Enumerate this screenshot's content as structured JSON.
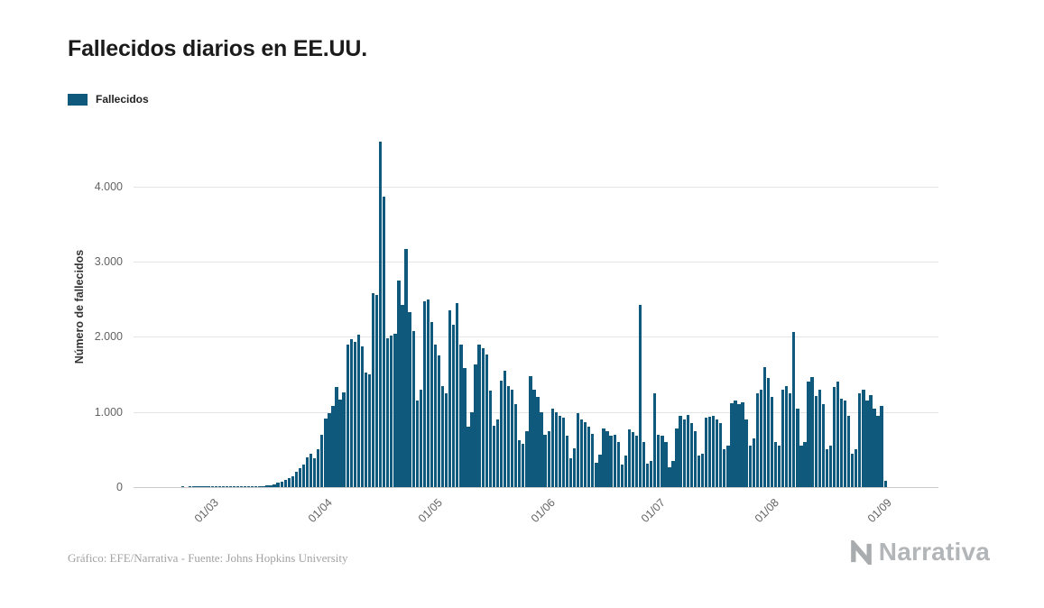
{
  "legend": {
    "label": "Fallecidos"
  },
  "footer": {
    "credit": "Gráfico: EFE/Narrativa - Fuente: Johns Hopkins University",
    "logo_text": "Narrativa"
  },
  "colors": {
    "bar": "#0f5a7c",
    "grid": "#e4e4e4",
    "baseline": "#cccccc",
    "axis_text": "#636363",
    "title": "#1b1b1b",
    "footer_text": "#a2a2a2",
    "logo": "#b3b6b8"
  },
  "chart_data": {
    "type": "bar",
    "title": "Fallecidos diarios en EE.UU.",
    "series_name": "Fallecidos",
    "xlabel": "",
    "ylabel": "Número de fallecidos",
    "legend_position": "top-left",
    "grid": true,
    "y_max": 4800,
    "y_ticks": [
      {
        "value": 0,
        "label": "0"
      },
      {
        "value": 1000,
        "label": "1.000"
      },
      {
        "value": 2000,
        "label": "2.000"
      },
      {
        "value": 3000,
        "label": "3.000"
      },
      {
        "value": 4000,
        "label": "4.000"
      }
    ],
    "domain_days": 220,
    "x_ticks": [
      {
        "label": "01/03",
        "index": 21
      },
      {
        "label": "01/04",
        "index": 52
      },
      {
        "label": "01/05",
        "index": 82
      },
      {
        "label": "01/06",
        "index": 113
      },
      {
        "label": "01/07",
        "index": 143
      },
      {
        "label": "01/08",
        "index": 174
      },
      {
        "label": "01/09",
        "index": 205
      }
    ],
    "values": [
      0,
      0,
      0,
      0,
      0,
      0,
      0,
      0,
      0,
      0,
      0,
      0,
      0,
      1,
      0,
      1,
      1,
      2,
      2,
      3,
      4,
      2,
      1,
      2,
      3,
      2,
      3,
      4,
      5,
      4,
      6,
      8,
      10,
      12,
      15,
      18,
      22,
      28,
      42,
      55,
      70,
      95,
      120,
      150,
      200,
      255,
      300,
      400,
      450,
      380,
      510,
      700,
      910,
      980,
      1080,
      1330,
      1170,
      1260,
      1900,
      1970,
      1930,
      2030,
      1870,
      1520,
      1500,
      2580,
      2560,
      4600,
      3860,
      1980,
      2020,
      2040,
      2750,
      2430,
      3170,
      2330,
      2080,
      1150,
      1300,
      2470,
      2500,
      2200,
      1900,
      1750,
      1340,
      1250,
      2350,
      2160,
      2450,
      1900,
      1580,
      800,
      1000,
      1630,
      1900,
      1850,
      1760,
      1280,
      820,
      900,
      1420,
      1550,
      1350,
      1300,
      1100,
      620,
      580,
      750,
      1480,
      1300,
      1200,
      1000,
      700,
      750,
      1050,
      1000,
      950,
      920,
      680,
      380,
      520,
      980,
      900,
      860,
      800,
      710,
      330,
      430,
      780,
      740,
      680,
      700,
      600,
      300,
      420,
      770,
      730,
      680,
      2430,
      600,
      310,
      350,
      1250,
      700,
      680,
      600,
      270,
      350,
      780,
      950,
      900,
      960,
      850,
      750,
      420,
      450,
      920,
      940,
      950,
      900,
      850,
      500,
      550,
      1120,
      1150,
      1100,
      1130,
      900,
      550,
      650,
      1250,
      1300,
      1600,
      1450,
      1200,
      600,
      550,
      1300,
      1350,
      1250,
      2060,
      1050,
      550,
      600,
      1410,
      1470,
      1210,
      1300,
      1100,
      500,
      550,
      1330,
      1400,
      1180,
      1150,
      950,
      450,
      500,
      1250,
      1300,
      1150,
      1230,
      1050,
      950,
      1080,
      80
    ]
  }
}
